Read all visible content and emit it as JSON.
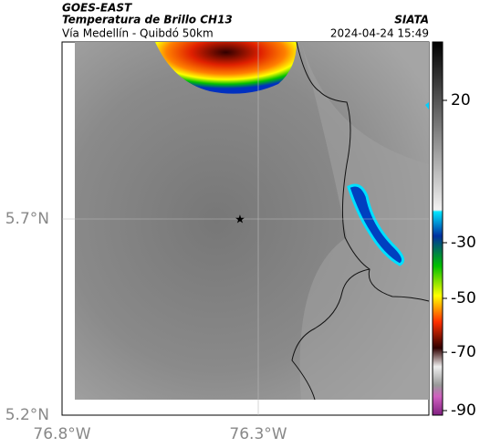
{
  "header": {
    "product": "GOES-EAST",
    "title": "Temperatura de Brillo CH13",
    "subtitle": "Vía Medellín - Quibdó 50km",
    "source": "SIATA",
    "timestamp": "2024-04-24 15:49"
  },
  "map": {
    "lat_labels": [
      "5.7°N",
      "5.2°N"
    ],
    "lon_labels": [
      "76.8°W",
      "76.3°W"
    ]
  },
  "colorbar": {
    "tick_labels": [
      "20",
      "-30",
      "-50",
      "-70",
      "-90"
    ]
  }
}
